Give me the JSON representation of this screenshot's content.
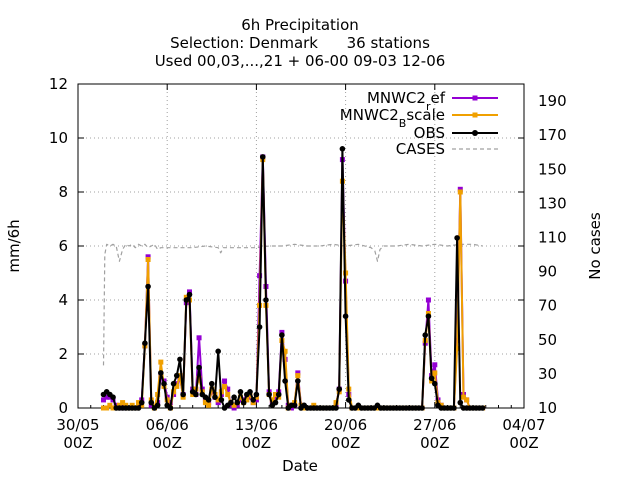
{
  "chart_data": {
    "type": "line",
    "title": [
      "6h Precipitation",
      "Selection: Denmark      36 stations",
      "Used 00,03,...,21 + 06-00 09-03 12-06"
    ],
    "xlabel": "Date",
    "ylabel": "mm/6h",
    "y2label": "No cases",
    "xlim": [
      0,
      35
    ],
    "ylim": [
      0,
      12
    ],
    "y2lim": [
      10,
      200
    ],
    "x_ticks": [
      {
        "x": 0,
        "line1": "30/05",
        "line2": "00Z"
      },
      {
        "x": 7,
        "line1": "06/06",
        "line2": "00Z"
      },
      {
        "x": 14,
        "line1": "13/06",
        "line2": "00Z"
      },
      {
        "x": 21,
        "line1": "20/06",
        "line2": "00Z"
      },
      {
        "x": 28,
        "line1": "27/06",
        "line2": "00Z"
      },
      {
        "x": 35,
        "line1": "04/07",
        "line2": "00Z"
      }
    ],
    "y_ticks": [
      0,
      2,
      4,
      6,
      8,
      10,
      12
    ],
    "y2_ticks": [
      10,
      30,
      50,
      70,
      90,
      110,
      130,
      150,
      170,
      190
    ],
    "grid": true,
    "legend_position": "top-right",
    "series": [
      {
        "name": "MNWC2_ref",
        "legend_text": "MNWC2",
        "legend_sub": "r",
        "legend_tail": "ef",
        "color": "#9400d3",
        "marker": "square",
        "x": [
          2.0,
          2.25,
          2.5,
          2.75,
          3.0,
          3.25,
          3.5,
          3.75,
          4.0,
          4.25,
          4.5,
          4.75,
          5.0,
          5.25,
          5.5,
          5.75,
          6.0,
          6.25,
          6.5,
          6.75,
          7.0,
          7.25,
          7.5,
          7.75,
          8.0,
          8.25,
          8.5,
          8.75,
          9.0,
          9.25,
          9.5,
          9.75,
          10.0,
          10.25,
          10.5,
          10.75,
          11.0,
          11.25,
          11.5,
          11.75,
          12.0,
          12.25,
          12.5,
          12.75,
          13.0,
          13.25,
          13.5,
          13.75,
          14.0,
          14.25,
          14.5,
          14.75,
          15.0,
          15.25,
          15.5,
          15.75,
          16.0,
          16.25,
          16.5,
          16.75,
          17.0,
          17.25,
          17.5,
          17.75,
          18.0,
          18.25,
          18.5,
          18.75,
          19.0,
          19.25,
          19.5,
          19.75,
          20.0,
          20.25,
          20.5,
          20.75,
          21.0,
          21.25,
          21.5,
          21.75,
          22.0,
          22.25,
          22.5,
          22.75,
          23.0,
          23.25,
          23.5,
          23.75,
          24.0,
          24.25,
          24.5,
          24.75,
          25.0,
          25.25,
          25.5,
          25.75,
          26.0,
          26.25,
          26.5,
          26.75,
          27.0,
          27.25,
          27.5,
          27.75,
          28.0,
          28.25,
          28.5,
          28.75,
          29.0,
          29.25,
          29.5,
          29.75,
          30.0,
          30.25,
          30.5,
          30.75,
          31.0,
          31.25,
          31.5,
          31.75
        ],
        "values": [
          0.3,
          0.4,
          0.4,
          0.3,
          0.1,
          0.0,
          0.1,
          0.0,
          0.0,
          0.0,
          0.0,
          0.1,
          0.3,
          2.3,
          5.6,
          0.1,
          0.0,
          0.2,
          1.2,
          1.0,
          0.4,
          0.2,
          0.5,
          0.9,
          1.1,
          0.5,
          3.9,
          4.3,
          0.7,
          0.5,
          2.6,
          0.7,
          0.3,
          0.2,
          0.6,
          0.4,
          0.2,
          0.5,
          1.0,
          0.7,
          0.1,
          0.0,
          0.1,
          0.3,
          0.3,
          0.4,
          0.4,
          0.2,
          0.3,
          4.9,
          9.3,
          4.5,
          0.6,
          0.2,
          0.4,
          0.6,
          2.8,
          1.8,
          0.1,
          0.0,
          0.1,
          1.3,
          0.1,
          0.0,
          0.0,
          0.0,
          0.0,
          0.0,
          0.0,
          0.0,
          0.0,
          0.0,
          0.0,
          0.1,
          0.7,
          9.2,
          4.7,
          0.5,
          0.0,
          0.0,
          0.0,
          0.0,
          0.0,
          0.0,
          0.0,
          0.0,
          0.0,
          0.0,
          0.0,
          0.0,
          0.0,
          0.0,
          0.0,
          0.0,
          0.0,
          0.0,
          0.0,
          0.0,
          0.0,
          0.0,
          0.0,
          2.4,
          4.0,
          1.2,
          1.6,
          0.3,
          0.1,
          0.0,
          0.0,
          0.0,
          0.0,
          2.5,
          8.1,
          0.5,
          0.3,
          0.0,
          0.0,
          0.0,
          0.0,
          0.0
        ]
      },
      {
        "name": "MNWC2_Bscale",
        "legend_text": "MNWC2",
        "legend_sub": "B",
        "legend_tail": "scale",
        "color": "#f0a000",
        "marker": "square",
        "x": [
          2.0,
          2.25,
          2.5,
          2.75,
          3.0,
          3.25,
          3.5,
          3.75,
          4.0,
          4.25,
          4.5,
          4.75,
          5.0,
          5.25,
          5.5,
          5.75,
          6.0,
          6.25,
          6.5,
          6.75,
          7.0,
          7.25,
          7.5,
          7.75,
          8.0,
          8.25,
          8.5,
          8.75,
          9.0,
          9.25,
          9.5,
          9.75,
          10.0,
          10.25,
          10.5,
          10.75,
          11.0,
          11.25,
          11.5,
          11.75,
          12.0,
          12.25,
          12.5,
          12.75,
          13.0,
          13.25,
          13.5,
          13.75,
          14.0,
          14.25,
          14.5,
          14.75,
          15.0,
          15.25,
          15.5,
          15.75,
          16.0,
          16.25,
          16.5,
          16.75,
          17.0,
          17.25,
          17.5,
          17.75,
          18.0,
          18.25,
          18.5,
          18.75,
          19.0,
          19.25,
          19.5,
          19.75,
          20.0,
          20.25,
          20.5,
          20.75,
          21.0,
          21.25,
          21.5,
          21.75,
          22.0,
          22.25,
          22.5,
          22.75,
          23.0,
          23.25,
          23.5,
          23.75,
          24.0,
          24.25,
          24.5,
          24.75,
          25.0,
          25.25,
          25.5,
          25.75,
          26.0,
          26.25,
          26.5,
          26.75,
          27.0,
          27.25,
          27.5,
          27.75,
          28.0,
          28.25,
          28.5,
          28.75,
          29.0,
          29.25,
          29.5,
          29.75,
          30.0,
          30.25,
          30.5,
          30.75,
          31.0,
          31.25,
          31.5,
          31.75
        ],
        "values": [
          0.0,
          0.0,
          0.1,
          0.0,
          0.0,
          0.1,
          0.2,
          0.1,
          0.0,
          0.1,
          0.0,
          0.2,
          0.1,
          2.3,
          5.5,
          0.3,
          0.0,
          0.5,
          1.7,
          0.8,
          0.3,
          0.0,
          0.6,
          0.8,
          1.2,
          0.4,
          4.1,
          4.0,
          0.5,
          0.7,
          1.1,
          0.6,
          0.2,
          0.1,
          0.7,
          0.5,
          0.3,
          0.6,
          0.8,
          0.5,
          0.2,
          0.1,
          0.2,
          0.4,
          0.2,
          0.3,
          0.5,
          0.2,
          0.4,
          3.8,
          9.2,
          3.8,
          0.5,
          0.3,
          0.5,
          0.4,
          2.5,
          2.1,
          0.0,
          0.1,
          0.2,
          1.2,
          0.1,
          0.0,
          0.0,
          0.0,
          0.1,
          0.0,
          0.0,
          0.0,
          0.0,
          0.0,
          0.0,
          0.2,
          0.6,
          8.4,
          5.0,
          0.7,
          0.0,
          0.0,
          0.0,
          0.0,
          0.0,
          0.0,
          0.0,
          0.0,
          0.0,
          0.0,
          0.0,
          0.0,
          0.0,
          0.0,
          0.0,
          0.0,
          0.0,
          0.0,
          0.0,
          0.0,
          0.0,
          0.0,
          0.0,
          2.5,
          3.5,
          1.0,
          1.3,
          0.2,
          0.1,
          0.0,
          0.0,
          0.0,
          0.0,
          2.2,
          8.0,
          0.4,
          0.3,
          0.0,
          0.0,
          0.0,
          0.0,
          0.0
        ]
      },
      {
        "name": "OBS",
        "legend_text": "OBS",
        "color": "#000000",
        "marker": "circle",
        "x": [
          2.0,
          2.25,
          2.5,
          2.75,
          3.0,
          3.25,
          3.5,
          3.75,
          4.0,
          4.25,
          4.5,
          4.75,
          5.0,
          5.25,
          5.5,
          5.75,
          6.0,
          6.25,
          6.5,
          6.75,
          7.0,
          7.25,
          7.5,
          7.75,
          8.0,
          8.25,
          8.5,
          8.75,
          9.0,
          9.25,
          9.5,
          9.75,
          10.0,
          10.25,
          10.5,
          10.75,
          11.0,
          11.25,
          11.5,
          11.75,
          12.0,
          12.25,
          12.5,
          12.75,
          13.0,
          13.25,
          13.5,
          13.75,
          14.0,
          14.25,
          14.5,
          14.75,
          15.0,
          15.25,
          15.5,
          15.75,
          16.0,
          16.25,
          16.5,
          16.75,
          17.0,
          17.25,
          17.5,
          17.75,
          18.0,
          18.25,
          18.5,
          18.75,
          19.0,
          19.25,
          19.5,
          19.75,
          20.0,
          20.25,
          20.5,
          20.75,
          21.0,
          21.25,
          21.5,
          21.75,
          22.0,
          22.25,
          22.5,
          22.75,
          23.0,
          23.25,
          23.5,
          23.75,
          24.0,
          24.25,
          24.5,
          24.75,
          25.0,
          25.25,
          25.5,
          25.75,
          26.0,
          26.25,
          26.5,
          26.75,
          27.0,
          27.25,
          27.5,
          27.75,
          28.0,
          28.25,
          28.5,
          28.75,
          29.0,
          29.25,
          29.5,
          29.75,
          30.0,
          30.25,
          30.5,
          30.75,
          31.0,
          31.25,
          31.5,
          31.75
        ],
        "values": [
          0.5,
          0.6,
          0.5,
          0.4,
          0.0,
          0.0,
          0.0,
          0.0,
          0.0,
          0.0,
          0.0,
          0.0,
          0.2,
          2.4,
          4.5,
          0.2,
          0.0,
          0.1,
          1.3,
          0.9,
          0.1,
          0.0,
          0.9,
          1.2,
          1.8,
          0.5,
          4.0,
          4.2,
          0.6,
          0.5,
          1.5,
          0.5,
          0.4,
          0.3,
          0.9,
          0.4,
          2.1,
          0.3,
          0.0,
          0.1,
          0.2,
          0.4,
          0.2,
          0.6,
          0.2,
          0.5,
          0.6,
          0.3,
          0.5,
          3.0,
          9.3,
          4.0,
          0.5,
          0.1,
          0.2,
          0.5,
          2.7,
          1.0,
          0.0,
          0.1,
          0.1,
          1.0,
          0.0,
          0.1,
          0.0,
          0.0,
          0.0,
          0.0,
          0.0,
          0.0,
          0.0,
          0.0,
          0.0,
          0.0,
          0.7,
          9.6,
          3.4,
          0.3,
          0.0,
          0.0,
          0.1,
          0.0,
          0.0,
          0.0,
          0.0,
          0.0,
          0.1,
          0.0,
          0.0,
          0.0,
          0.0,
          0.0,
          0.0,
          0.0,
          0.0,
          0.0,
          0.0,
          0.0,
          0.0,
          0.0,
          0.0,
          2.7,
          3.4,
          1.1,
          0.9,
          0.1,
          0.0,
          0.0,
          0.0,
          0.0,
          0.0,
          6.3,
          0.2,
          0.0,
          0.0,
          0.0,
          0.0,
          0.0,
          0.0,
          0.0
        ]
      },
      {
        "name": "CASES",
        "legend_text": "CASES",
        "color": "#a0a0a0",
        "axis": "y2",
        "dash": true,
        "x": [
          2.0,
          2.1,
          2.25,
          2.5,
          2.75,
          3.0,
          3.25,
          3.5,
          3.75,
          4.0,
          4.25,
          4.5,
          4.75,
          5.0,
          5.25,
          5.5,
          5.75,
          6.0,
          6.25,
          6.5,
          6.75,
          7.0,
          8.0,
          9.0,
          10.0,
          11.0,
          11.2,
          11.4,
          11.6,
          12.0,
          13.0,
          14.0,
          15.0,
          16.0,
          17.0,
          18.0,
          19.0,
          20.0,
          21.0,
          22.0,
          23.0,
          23.3,
          23.5,
          23.7,
          24.0,
          25.0,
          26.0,
          27.0,
          28.0,
          29.0,
          30.0,
          31.0,
          31.75
        ],
        "values": [
          35,
          100,
          106,
          105,
          106,
          105,
          96,
          103,
          106,
          105,
          106,
          104,
          106,
          105,
          106,
          104,
          105,
          106,
          103,
          104,
          104,
          104,
          104,
          104,
          105,
          104,
          101,
          104,
          104,
          104,
          104,
          104,
          105,
          105,
          106,
          105,
          105,
          106,
          105,
          106,
          104,
          102,
          96,
          103,
          105,
          105,
          106,
          105,
          106,
          105,
          106,
          106,
          105
        ]
      }
    ]
  }
}
